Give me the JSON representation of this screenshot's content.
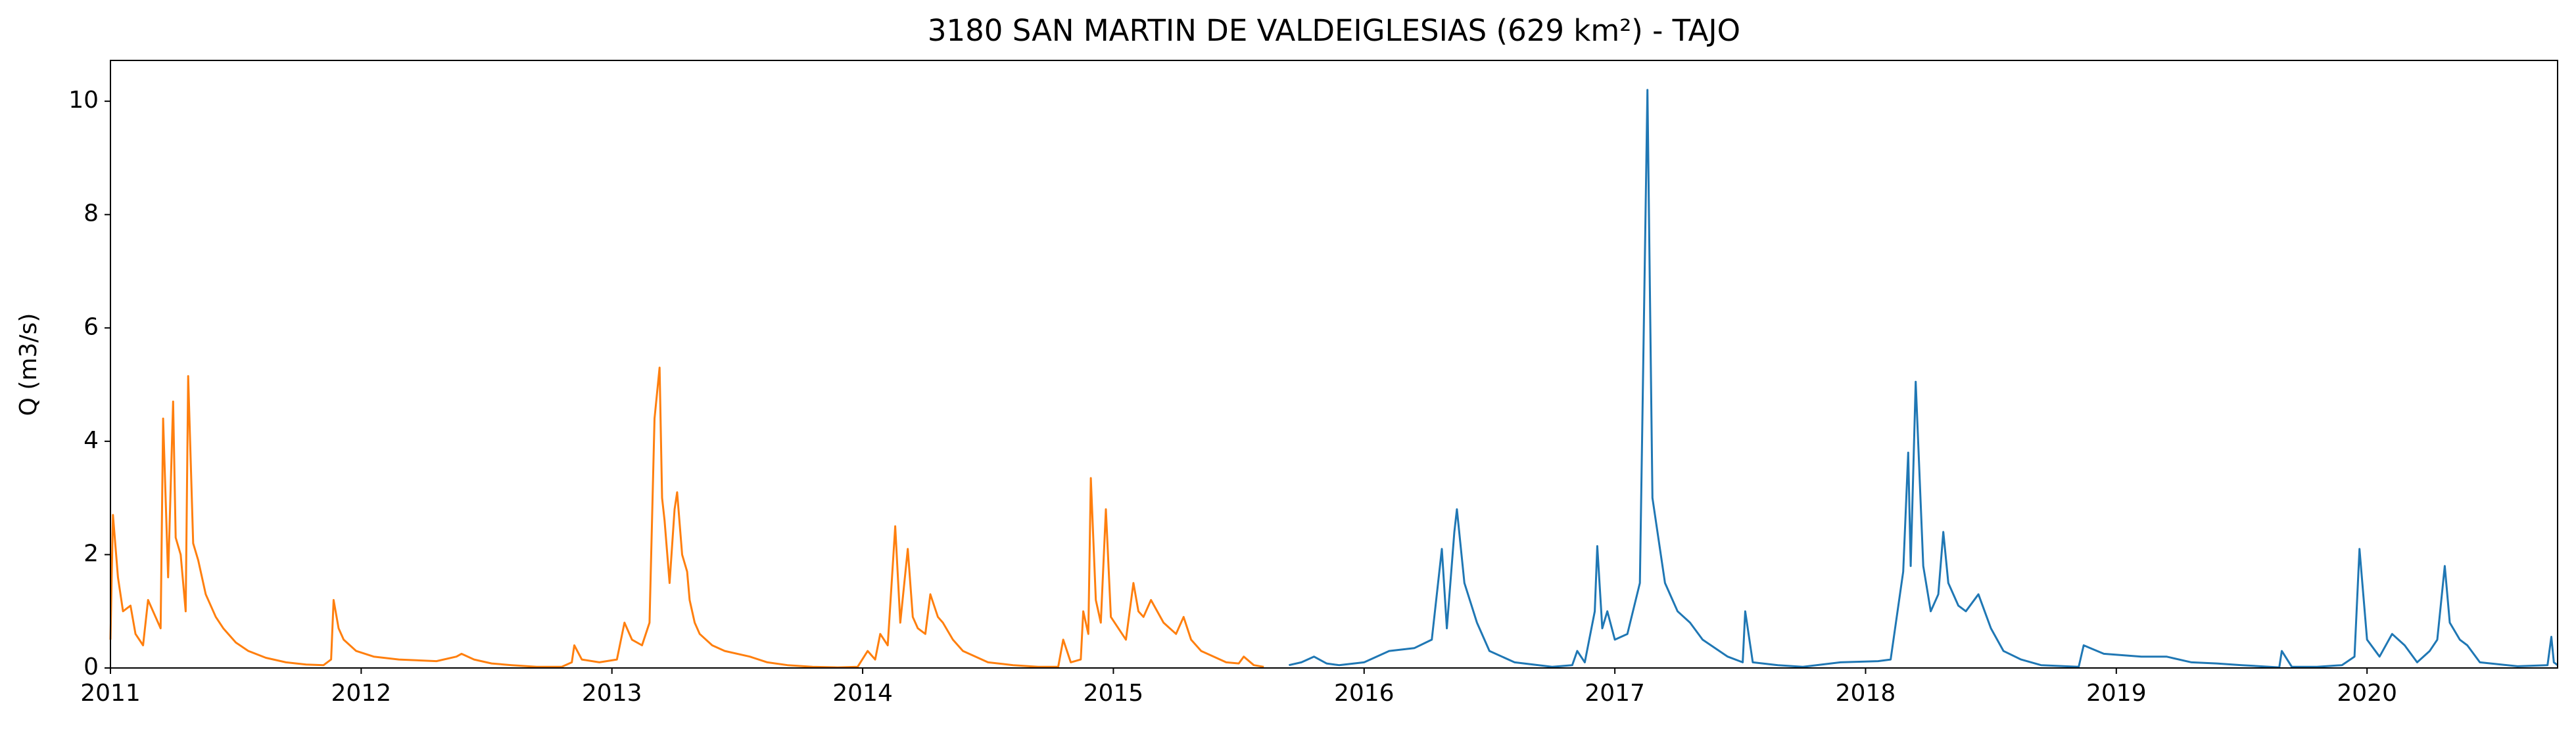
{
  "chart_data": {
    "type": "line",
    "title": "3180 SAN MARTIN DE VALDEIGLESIAS (629 km²) - TAJO",
    "y_label": "Q (m3/s)",
    "xlim": [
      2011,
      2020.76
    ],
    "xticks": [
      2011,
      2012,
      2013,
      2014,
      2015,
      2016,
      2017,
      2018,
      2019,
      2020
    ],
    "ylim": [
      0,
      10.72
    ],
    "yticks": [
      0,
      2,
      4,
      6,
      8,
      10
    ],
    "grid": false,
    "series": [
      {
        "color": "#ff7f0e",
        "x": [
          2011.0,
          2011.01,
          2011.03,
          2011.05,
          2011.08,
          2011.1,
          2011.13,
          2011.15,
          2011.18,
          2011.2,
          2011.21,
          2011.23,
          2011.25,
          2011.26,
          2011.28,
          2011.3,
          2011.31,
          2011.33,
          2011.35,
          2011.38,
          2011.42,
          2011.45,
          2011.5,
          2011.55,
          2011.62,
          2011.7,
          2011.78,
          2011.85,
          2011.88,
          2011.89,
          2011.91,
          2011.93,
          2011.98,
          2012.05,
          2012.15,
          2012.3,
          2012.38,
          2012.4,
          2012.45,
          2012.52,
          2012.6,
          2012.7,
          2012.8,
          2012.84,
          2012.85,
          2012.88,
          2012.95,
          2013.02,
          2013.05,
          2013.08,
          2013.12,
          2013.15,
          2013.17,
          2013.19,
          2013.2,
          2013.21,
          2013.23,
          2013.25,
          2013.26,
          2013.28,
          2013.3,
          2013.31,
          2013.33,
          2013.35,
          2013.4,
          2013.45,
          2013.55,
          2013.62,
          2013.7,
          2013.8,
          2013.9,
          2013.98,
          2014.02,
          2014.05,
          2014.07,
          2014.1,
          2014.13,
          2014.15,
          2014.18,
          2014.2,
          2014.22,
          2014.25,
          2014.27,
          2014.3,
          2014.32,
          2014.36,
          2014.4,
          2014.45,
          2014.5,
          2014.6,
          2014.7,
          2014.78,
          2014.8,
          2014.83,
          2014.87,
          2014.88,
          2014.9,
          2014.91,
          2014.93,
          2014.95,
          2014.97,
          2014.99,
          2015.02,
          2015.05,
          2015.08,
          2015.1,
          2015.12,
          2015.15,
          2015.2,
          2015.25,
          2015.28,
          2015.31,
          2015.35,
          2015.4,
          2015.45,
          2015.5,
          2015.52,
          2015.56,
          2015.6
        ],
        "values": [
          0.5,
          2.7,
          1.6,
          1.0,
          1.1,
          0.6,
          0.4,
          1.2,
          0.9,
          0.7,
          4.4,
          1.6,
          4.7,
          2.3,
          2.0,
          1.0,
          5.15,
          2.2,
          1.9,
          1.3,
          0.9,
          0.7,
          0.45,
          0.3,
          0.18,
          0.1,
          0.06,
          0.05,
          0.15,
          1.2,
          0.7,
          0.5,
          0.3,
          0.2,
          0.15,
          0.12,
          0.2,
          0.25,
          0.15,
          0.08,
          0.05,
          0.02,
          0.02,
          0.1,
          0.4,
          0.15,
          0.1,
          0.15,
          0.8,
          0.5,
          0.4,
          0.8,
          4.4,
          5.3,
          3.0,
          2.6,
          1.5,
          2.8,
          3.1,
          2.0,
          1.7,
          1.2,
          0.8,
          0.6,
          0.4,
          0.3,
          0.2,
          0.1,
          0.05,
          0.02,
          0.01,
          0.02,
          0.3,
          0.15,
          0.6,
          0.4,
          2.5,
          0.8,
          2.1,
          0.9,
          0.7,
          0.6,
          1.3,
          0.9,
          0.8,
          0.5,
          0.3,
          0.2,
          0.1,
          0.05,
          0.02,
          0.02,
          0.5,
          0.1,
          0.15,
          1.0,
          0.6,
          3.35,
          1.2,
          0.8,
          2.8,
          0.9,
          0.7,
          0.5,
          1.5,
          1.0,
          0.9,
          1.2,
          0.8,
          0.6,
          0.9,
          0.5,
          0.3,
          0.2,
          0.1,
          0.08,
          0.2,
          0.05,
          0.02
        ]
      },
      {
        "color": "#1f77b4",
        "x": [
          2015.7,
          2015.75,
          2015.8,
          2015.85,
          2015.9,
          2016.0,
          2016.1,
          2016.2,
          2016.27,
          2016.31,
          2016.33,
          2016.36,
          2016.37,
          2016.4,
          2016.45,
          2016.5,
          2016.6,
          2016.75,
          2016.83,
          2016.85,
          2016.88,
          2016.92,
          2016.93,
          2016.95,
          2016.97,
          2017.0,
          2017.05,
          2017.1,
          2017.13,
          2017.15,
          2017.2,
          2017.25,
          2017.3,
          2017.35,
          2017.45,
          2017.51,
          2017.52,
          2017.55,
          2017.65,
          2017.75,
          2017.9,
          2018.05,
          2018.1,
          2018.15,
          2018.17,
          2018.18,
          2018.2,
          2018.23,
          2018.26,
          2018.29,
          2018.31,
          2018.33,
          2018.37,
          2018.4,
          2018.45,
          2018.5,
          2018.55,
          2018.62,
          2018.7,
          2018.85,
          2018.87,
          2018.95,
          2019.1,
          2019.2,
          2019.3,
          2019.4,
          2019.5,
          2019.65,
          2019.66,
          2019.7,
          2019.8,
          2019.9,
          2019.95,
          2019.97,
          2020.0,
          2020.05,
          2020.1,
          2020.15,
          2020.2,
          2020.25,
          2020.28,
          2020.31,
          2020.33,
          2020.37,
          2020.4,
          2020.45,
          2020.6,
          2020.72,
          2020.735,
          2020.745,
          2020.76
        ],
        "values": [
          0.05,
          0.1,
          0.2,
          0.08,
          0.05,
          0.1,
          0.3,
          0.35,
          0.5,
          2.1,
          0.7,
          2.4,
          2.8,
          1.5,
          0.8,
          0.3,
          0.1,
          0.02,
          0.05,
          0.3,
          0.1,
          1.0,
          2.15,
          0.7,
          1.0,
          0.5,
          0.6,
          1.5,
          10.2,
          3.0,
          1.5,
          1.0,
          0.8,
          0.5,
          0.2,
          0.1,
          1.0,
          0.1,
          0.05,
          0.02,
          0.1,
          0.12,
          0.15,
          1.7,
          3.8,
          1.8,
          5.05,
          1.8,
          1.0,
          1.3,
          2.4,
          1.5,
          1.1,
          1.0,
          1.3,
          0.7,
          0.3,
          0.15,
          0.05,
          0.02,
          0.4,
          0.25,
          0.2,
          0.2,
          0.1,
          0.08,
          0.05,
          0.01,
          0.3,
          0.02,
          0.02,
          0.05,
          0.2,
          2.1,
          0.5,
          0.2,
          0.6,
          0.4,
          0.1,
          0.3,
          0.5,
          1.8,
          0.8,
          0.5,
          0.4,
          0.1,
          0.03,
          0.05,
          0.55,
          0.1,
          0.05
        ]
      }
    ]
  }
}
